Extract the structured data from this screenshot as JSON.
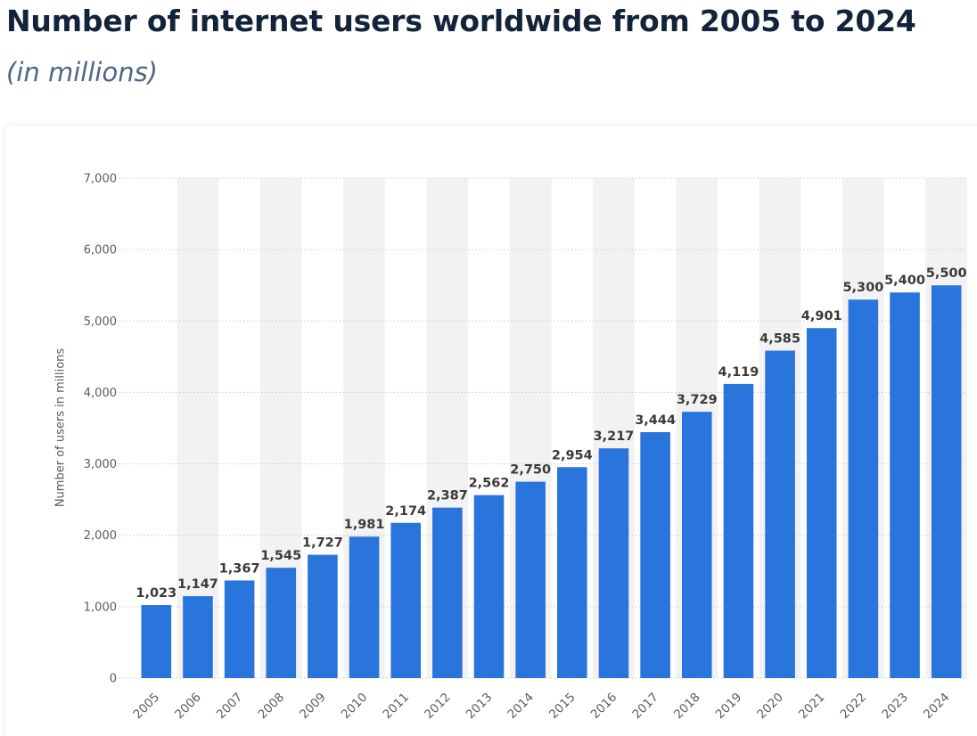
{
  "title": "Number of internet users worldwide from 2005 to 2024",
  "subtitle": "(in millions)",
  "colors": {
    "bar": "#2a75dc",
    "title": "#13233a",
    "subtitle": "#4c6689",
    "band": "#f2f2f2",
    "grid": "#c9c9c9"
  },
  "chart_data": {
    "type": "bar",
    "title": "Number of internet users worldwide from 2005 to 2024",
    "subtitle": "(in millions)",
    "xlabel": "",
    "ylabel": "Number of users in millions",
    "ylim": [
      0,
      7000
    ],
    "yticks": [
      "0",
      "1,000",
      "2,000",
      "3,000",
      "4,000",
      "5,000",
      "6,000",
      "7,000"
    ],
    "grid": true,
    "categories": [
      "2005",
      "2006",
      "2007",
      "2008",
      "2009",
      "2010",
      "2011",
      "2012",
      "2013",
      "2014",
      "2015",
      "2016",
      "2017",
      "2018",
      "2019",
      "2020",
      "2021",
      "2022",
      "2023",
      "2024"
    ],
    "values": [
      1023,
      1147,
      1367,
      1545,
      1727,
      1981,
      2174,
      2387,
      2562,
      2750,
      2954,
      3217,
      3444,
      3729,
      4119,
      4585,
      4901,
      5300,
      5400,
      5500
    ],
    "data_labels": [
      "1,023",
      "1,147",
      "1,367",
      "1,545",
      "1,727",
      "1,981",
      "2,174",
      "2,387",
      "2,562",
      "2,750",
      "2,954",
      "3,217",
      "3,444",
      "3,729",
      "4,119",
      "4,585",
      "4,901",
      "5,300",
      "5,400",
      "5,500"
    ]
  }
}
